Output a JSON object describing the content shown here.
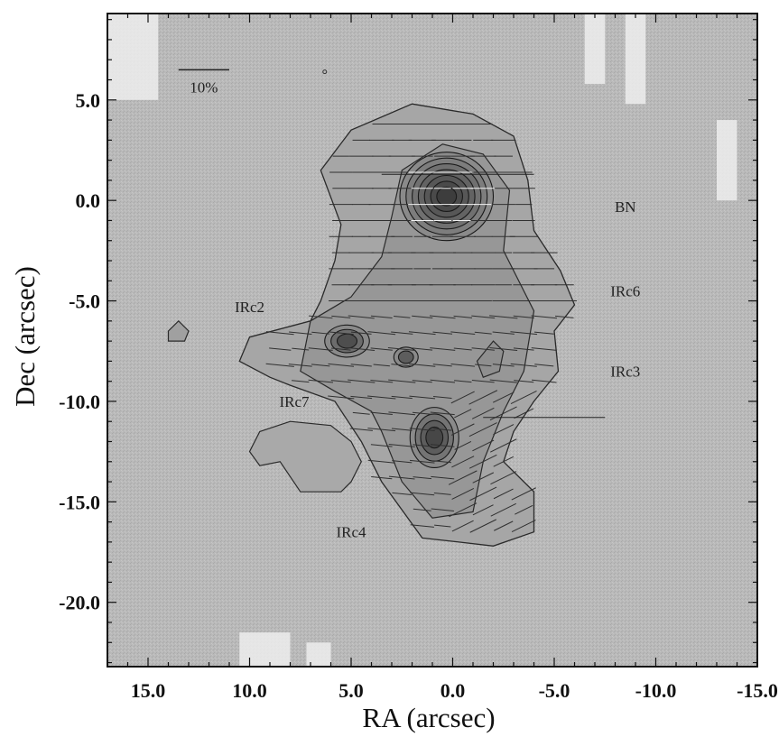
{
  "chart_data": {
    "type": "map",
    "xlabel": "RA (arcsec)",
    "ylabel": "Dec (arcsec)",
    "xlim": [
      17.0,
      -15.0
    ],
    "ylim": [
      -23.2,
      9.3
    ],
    "x_ticks": [
      {
        "value": 15.0,
        "label": "15.0"
      },
      {
        "value": 10.0,
        "label": "10.0"
      },
      {
        "value": 5.0,
        "label": "5.0"
      },
      {
        "value": 0.0,
        "label": "0.0"
      },
      {
        "value": -5.0,
        "label": "-5.0"
      },
      {
        "value": -10.0,
        "label": "-10.0"
      },
      {
        "value": -15.0,
        "label": "-15.0"
      }
    ],
    "y_ticks": [
      {
        "value": 5.0,
        "label": "5.0"
      },
      {
        "value": 0.0,
        "label": "0.0"
      },
      {
        "value": -5.0,
        "label": "-5.0"
      },
      {
        "value": -10.0,
        "label": "-10.0"
      },
      {
        "value": -15.0,
        "label": "-15.0"
      },
      {
        "value": -20.0,
        "label": "-20.0"
      }
    ],
    "scale_bar": {
      "label": "10%",
      "ra_start": 13.5,
      "ra_end": 11.0,
      "dec": 6.5
    },
    "sources": [
      {
        "name": "BN",
        "ra": -8.5,
        "dec": -0.3
      },
      {
        "name": "IRc6",
        "ra": -8.5,
        "dec": -4.5
      },
      {
        "name": "IRc3",
        "ra": -8.5,
        "dec": -8.5
      },
      {
        "name": "IRc2",
        "ra": 10.0,
        "dec": -5.3
      },
      {
        "name": "IRc7",
        "ra": 7.8,
        "dec": -10.0
      },
      {
        "name": "IRc4",
        "ra": 5.0,
        "dec": -16.5
      }
    ],
    "intensity_peaks": [
      {
        "ra": 0.3,
        "dec": 0.2,
        "levels": 7,
        "radius_ra": 2.3,
        "radius_dec": 2.2
      },
      {
        "ra": 5.2,
        "dec": -7.0,
        "levels": 3,
        "radius_ra": 1.1,
        "radius_dec": 0.8
      },
      {
        "ra": 2.3,
        "dec": -7.8,
        "levels": 2,
        "radius_ra": 0.6,
        "radius_dec": 0.5
      },
      {
        "ra": 0.9,
        "dec": -11.8,
        "levels": 4,
        "radius_ra": 1.2,
        "radius_dec": 1.5
      }
    ],
    "outer_contour": [
      [
        5.8,
        -3.0
      ],
      [
        5.5,
        -1.2
      ],
      [
        6.5,
        1.5
      ],
      [
        5.0,
        3.5
      ],
      [
        2.0,
        4.8
      ],
      [
        -1.0,
        4.3
      ],
      [
        -3.0,
        3.2
      ],
      [
        -3.7,
        1.0
      ],
      [
        -4.0,
        -1.5
      ],
      [
        -5.3,
        -3.5
      ],
      [
        -6.0,
        -5.2
      ],
      [
        -5.0,
        -6.5
      ],
      [
        -5.2,
        -8.5
      ],
      [
        -4.0,
        -10.0
      ],
      [
        -3.0,
        -11.5
      ],
      [
        -2.5,
        -13.0
      ],
      [
        -4.0,
        -14.5
      ],
      [
        -4.0,
        -16.5
      ],
      [
        -2.0,
        -17.2
      ],
      [
        -0.3,
        -17.0
      ],
      [
        1.5,
        -16.8
      ],
      [
        3.5,
        -14.0
      ],
      [
        4.5,
        -12.0
      ],
      [
        5.8,
        -10.0
      ],
      [
        8.0,
        -9.2
      ],
      [
        9.0,
        -8.8
      ],
      [
        10.5,
        -8.0
      ],
      [
        10.0,
        -6.8
      ],
      [
        7.0,
        -6.0
      ],
      [
        6.5,
        -5.0
      ]
    ],
    "inner_contour": [
      [
        3.5,
        -2.8
      ],
      [
        3.0,
        -0.8
      ],
      [
        2.5,
        1.5
      ],
      [
        0.5,
        2.8
      ],
      [
        -1.5,
        2.3
      ],
      [
        -2.8,
        0.5
      ],
      [
        -2.5,
        -2.5
      ],
      [
        -4.0,
        -5.5
      ],
      [
        -3.5,
        -8.5
      ],
      [
        -2.5,
        -10.5
      ],
      [
        -1.5,
        -13.0
      ],
      [
        -1.0,
        -15.5
      ],
      [
        1.0,
        -15.8
      ],
      [
        2.5,
        -14.0
      ],
      [
        3.5,
        -11.5
      ],
      [
        4.0,
        -10.5
      ],
      [
        5.8,
        -9.5
      ],
      [
        7.5,
        -8.5
      ],
      [
        7.0,
        -6.0
      ],
      [
        5.0,
        -4.8
      ]
    ],
    "irc2_blob": [
      [
        9.5,
        -11.5
      ],
      [
        8.0,
        -11.0
      ],
      [
        6.0,
        -11.2
      ],
      [
        5.0,
        -12.0
      ],
      [
        4.5,
        -13.0
      ],
      [
        5.0,
        -14.0
      ],
      [
        5.5,
        -14.5
      ],
      [
        7.5,
        -14.5
      ],
      [
        8.5,
        -13.0
      ],
      [
        9.5,
        -13.2
      ],
      [
        10.0,
        -12.5
      ]
    ],
    "small_blob": [
      [
        13.5,
        -6.0
      ],
      [
        13.0,
        -6.5
      ],
      [
        13.2,
        -7.0
      ],
      [
        14.0,
        -7.0
      ],
      [
        14.0,
        -6.5
      ]
    ],
    "small_blob2": [
      [
        -2.0,
        -7.0
      ],
      [
        -2.5,
        -7.5
      ],
      [
        -2.3,
        -8.5
      ],
      [
        -1.5,
        -8.8
      ],
      [
        -1.2,
        -8.0
      ]
    ],
    "background_patches": [
      {
        "ra": 17.0,
        "dec": 9.3,
        "w": 2.5,
        "h": 4.3
      },
      {
        "ra": -6.5,
        "dec": 9.3,
        "w": 1.0,
        "h": 3.5
      },
      {
        "ra": -8.5,
        "dec": 9.3,
        "w": 1.0,
        "h": 4.5
      },
      {
        "ra": -13.0,
        "dec": 4.0,
        "w": 1.0,
        "h": 4.0
      },
      {
        "ra": 10.5,
        "dec": -21.5,
        "w": 2.5,
        "h": 1.7
      },
      {
        "ra": 7.2,
        "dec": -22.0,
        "w": 1.2,
        "h": 1.2
      }
    ]
  }
}
